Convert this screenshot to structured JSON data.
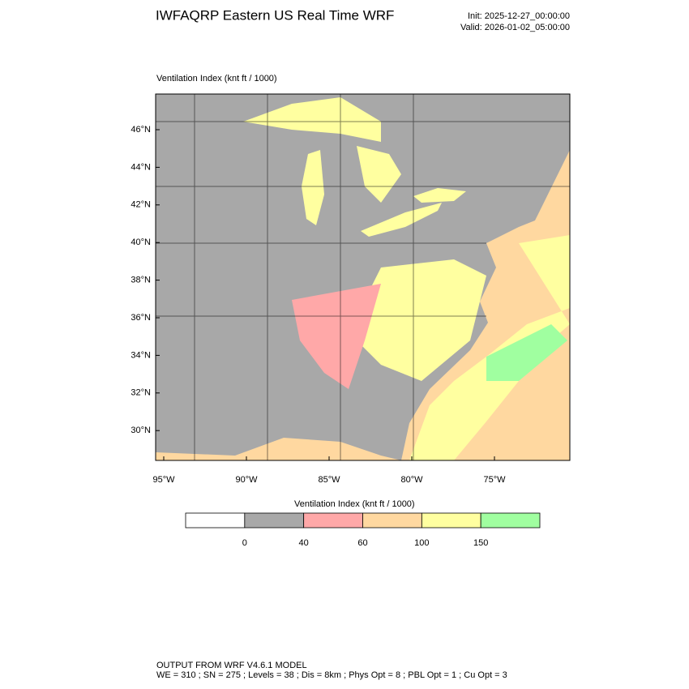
{
  "title": "IWFAQRP Eastern US Real Time WRF",
  "init": "Init: 2025-12-27_00:00:00",
  "valid": "Valid: 2026-01-02_05:00:00",
  "map": {
    "subtitle": "Ventilation Index   (knt ft / 1000)",
    "lat_labels": [
      "46°N",
      "44°N",
      "42°N",
      "40°N",
      "38°N",
      "36°N",
      "34°N",
      "32°N",
      "30°N"
    ],
    "lon_labels": [
      "95°W",
      "90°W",
      "85°W",
      "80°W",
      "75°W"
    ]
  },
  "colorbar": {
    "title": "Ventilation Index  (knt ft / 1000)",
    "labels": [
      0,
      40,
      60,
      100,
      150
    ],
    "colors": [
      "#ffffff",
      "#a8a8a8",
      "#ffa8a8",
      "#ffd8a0",
      "#ffffa0",
      "#a0ffa0"
    ]
  },
  "footer": [
    "OUTPUT FROM WRF V4.6.1 MODEL",
    "WE = 310 ; SN = 275 ; Levels = 38 ; Dis = 8km ; Phys Opt = 8 ; PBL Opt = 1 ; Cu Opt = 3"
  ]
}
